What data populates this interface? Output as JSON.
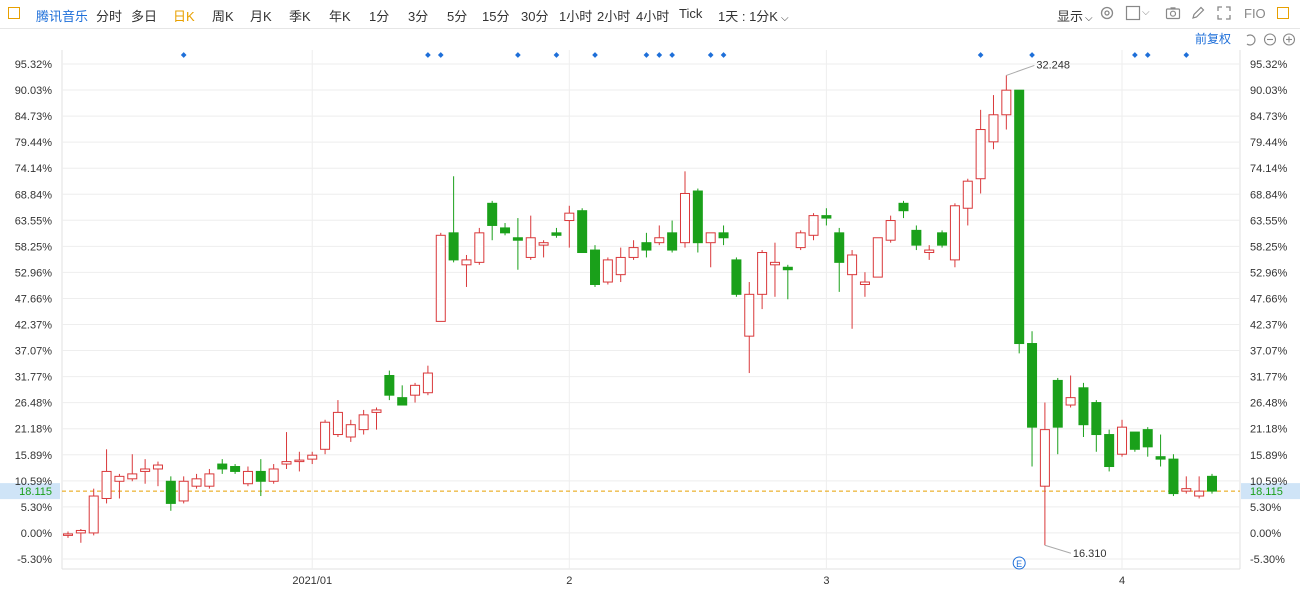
{
  "toolbar": {
    "stock_name": "腾讯音乐",
    "periods": [
      "分时",
      "多日",
      "日K",
      "周K",
      "月K",
      "季K",
      "年K",
      "1分",
      "3分",
      "5分",
      "15分",
      "30分",
      "1小时",
      "2小时",
      "4小时",
      "Tick"
    ],
    "active_period": "日K",
    "aggregation": "1天 : 1分K",
    "display_label": "显示",
    "fio_label": "FIO"
  },
  "adjust_label": "前复权",
  "colors": {
    "up": "#d9383a",
    "down": "#1aa01a",
    "grid": "#eeeeee",
    "axis_text": "#333333",
    "price_line": "#e8a000",
    "price_box": "#cfe4f7",
    "marker": "#1e6fd9"
  },
  "chart_data": {
    "type": "candlestick",
    "y_axis": {
      "unit": "percent",
      "ticks": [
        95.32,
        90.03,
        84.73,
        79.44,
        74.14,
        68.84,
        63.55,
        58.25,
        52.96,
        47.66,
        42.37,
        37.07,
        31.77,
        26.48,
        21.18,
        15.89,
        10.59,
        5.3,
        0.0,
        -5.3
      ]
    },
    "x_axis": {
      "labels": [
        "2021/01",
        "2",
        "3",
        "4"
      ]
    },
    "current_price_label": "18.115",
    "high_label": "32.248",
    "low_label": "16.310",
    "event_marker": "E",
    "candles": [
      {
        "o": -0.5,
        "h": 0.3,
        "l": -1.0,
        "c": -0.2
      },
      {
        "o": 0.0,
        "h": 0.8,
        "l": -2.0,
        "c": 0.5
      },
      {
        "o": 0.0,
        "h": 9.0,
        "l": -0.5,
        "c": 7.5
      },
      {
        "o": 7.0,
        "h": 17.0,
        "l": 6.0,
        "c": 12.5
      },
      {
        "o": 10.5,
        "h": 12.0,
        "l": 7.0,
        "c": 11.5
      },
      {
        "o": 11.0,
        "h": 16.0,
        "l": 10.5,
        "c": 12.0
      },
      {
        "o": 12.5,
        "h": 15.0,
        "l": 10.0,
        "c": 13.0
      },
      {
        "o": 13.0,
        "h": 14.5,
        "l": 9.5,
        "c": 13.8
      },
      {
        "o": 10.5,
        "h": 11.5,
        "l": 4.5,
        "c": 6.0
      },
      {
        "o": 6.5,
        "h": 11.5,
        "l": 6.0,
        "c": 10.5
      },
      {
        "o": 9.5,
        "h": 12.0,
        "l": 9.0,
        "c": 11.0
      },
      {
        "o": 9.5,
        "h": 13.0,
        "l": 9.0,
        "c": 12.0
      },
      {
        "o": 14.0,
        "h": 15.0,
        "l": 12.0,
        "c": 13.0
      },
      {
        "o": 13.5,
        "h": 14.0,
        "l": 12.0,
        "c": 12.5
      },
      {
        "o": 10.0,
        "h": 13.5,
        "l": 9.5,
        "c": 12.5
      },
      {
        "o": 12.5,
        "h": 15.0,
        "l": 7.5,
        "c": 10.5
      },
      {
        "o": 10.5,
        "h": 14.0,
        "l": 10.0,
        "c": 13.0
      },
      {
        "o": 14.0,
        "h": 20.5,
        "l": 13.0,
        "c": 14.5
      },
      {
        "o": 14.5,
        "h": 16.5,
        "l": 12.5,
        "c": 14.8
      },
      {
        "o": 15.0,
        "h": 16.5,
        "l": 14.0,
        "c": 15.8
      },
      {
        "o": 17.0,
        "h": 23.0,
        "l": 16.0,
        "c": 22.5
      },
      {
        "o": 20.0,
        "h": 27.0,
        "l": 19.5,
        "c": 24.5
      },
      {
        "o": 19.5,
        "h": 23.0,
        "l": 18.5,
        "c": 22.0
      },
      {
        "o": 21.0,
        "h": 25.0,
        "l": 20.0,
        "c": 24.0
      },
      {
        "o": 24.5,
        "h": 25.5,
        "l": 21.0,
        "c": 25.0
      },
      {
        "o": 32.0,
        "h": 33.0,
        "l": 27.0,
        "c": 28.0
      },
      {
        "o": 27.5,
        "h": 30.0,
        "l": 26.0,
        "c": 26.0
      },
      {
        "o": 28.0,
        "h": 30.5,
        "l": 26.5,
        "c": 30.0
      },
      {
        "o": 28.5,
        "h": 34.0,
        "l": 28.0,
        "c": 32.5
      },
      {
        "o": 43.0,
        "h": 61.0,
        "l": 43.0,
        "c": 60.5
      },
      {
        "o": 61.0,
        "h": 72.5,
        "l": 55.0,
        "c": 55.5
      },
      {
        "o": 54.5,
        "h": 56.5,
        "l": 50.0,
        "c": 55.5
      },
      {
        "o": 55.0,
        "h": 62.0,
        "l": 54.5,
        "c": 61.0
      },
      {
        "o": 67.0,
        "h": 67.5,
        "l": 59.5,
        "c": 62.5
      },
      {
        "o": 62.0,
        "h": 63.0,
        "l": 60.5,
        "c": 61.0
      },
      {
        "o": 60.0,
        "h": 64.0,
        "l": 53.5,
        "c": 59.5
      },
      {
        "o": 56.0,
        "h": 64.5,
        "l": 55.5,
        "c": 60.0
      },
      {
        "o": 58.5,
        "h": 59.5,
        "l": 56.0,
        "c": 59.0
      },
      {
        "o": 61.0,
        "h": 62.0,
        "l": 60.0,
        "c": 60.5
      },
      {
        "o": 63.5,
        "h": 66.5,
        "l": 58.0,
        "c": 65.0
      },
      {
        "o": 65.5,
        "h": 66.0,
        "l": 57.0,
        "c": 57.0
      },
      {
        "o": 57.5,
        "h": 58.5,
        "l": 50.0,
        "c": 50.5
      },
      {
        "o": 51.0,
        "h": 56.0,
        "l": 50.5,
        "c": 55.5
      },
      {
        "o": 52.5,
        "h": 58.0,
        "l": 51.0,
        "c": 56.0
      },
      {
        "o": 56.0,
        "h": 59.5,
        "l": 55.5,
        "c": 58.0
      },
      {
        "o": 59.0,
        "h": 61.0,
        "l": 56.0,
        "c": 57.5
      },
      {
        "o": 59.0,
        "h": 62.5,
        "l": 58.5,
        "c": 60.0
      },
      {
        "o": 61.0,
        "h": 63.5,
        "l": 57.0,
        "c": 57.5
      },
      {
        "o": 59.0,
        "h": 73.5,
        "l": 58.0,
        "c": 69.0
      },
      {
        "o": 69.5,
        "h": 70.0,
        "l": 57.0,
        "c": 59.0
      },
      {
        "o": 59.0,
        "h": 61.0,
        "l": 54.0,
        "c": 61.0
      },
      {
        "o": 61.0,
        "h": 62.5,
        "l": 58.5,
        "c": 60.0
      },
      {
        "o": 55.5,
        "h": 56.0,
        "l": 48.0,
        "c": 48.5
      },
      {
        "o": 40.0,
        "h": 51.0,
        "l": 32.5,
        "c": 48.5
      },
      {
        "o": 48.5,
        "h": 57.5,
        "l": 45.5,
        "c": 57.0
      },
      {
        "o": 54.5,
        "h": 59.0,
        "l": 48.0,
        "c": 55.0
      },
      {
        "o": 54.0,
        "h": 54.5,
        "l": 47.5,
        "c": 53.5
      },
      {
        "o": 58.0,
        "h": 61.5,
        "l": 57.5,
        "c": 61.0
      },
      {
        "o": 60.5,
        "h": 65.0,
        "l": 59.5,
        "c": 64.5
      },
      {
        "o": 64.5,
        "h": 66.0,
        "l": 62.5,
        "c": 64.0
      },
      {
        "o": 61.0,
        "h": 62.0,
        "l": 49.0,
        "c": 55.0
      },
      {
        "o": 52.5,
        "h": 57.5,
        "l": 41.5,
        "c": 56.5
      },
      {
        "o": 50.5,
        "h": 53.0,
        "l": 48.0,
        "c": 51.0
      },
      {
        "o": 52.0,
        "h": 60.0,
        "l": 52.0,
        "c": 60.0
      },
      {
        "o": 59.5,
        "h": 64.5,
        "l": 59.0,
        "c": 63.5
      },
      {
        "o": 67.0,
        "h": 67.5,
        "l": 64.0,
        "c": 65.5
      },
      {
        "o": 61.5,
        "h": 62.5,
        "l": 57.5,
        "c": 58.5
      },
      {
        "o": 57.0,
        "h": 58.5,
        "l": 55.5,
        "c": 57.5
      },
      {
        "o": 61.0,
        "h": 61.5,
        "l": 58.0,
        "c": 58.5
      },
      {
        "o": 55.5,
        "h": 67.0,
        "l": 54.0,
        "c": 66.5
      },
      {
        "o": 66.0,
        "h": 72.0,
        "l": 62.5,
        "c": 71.5
      },
      {
        "o": 72.0,
        "h": 86.0,
        "l": 69.0,
        "c": 82.0
      },
      {
        "o": 79.5,
        "h": 89.0,
        "l": 78.0,
        "c": 85.0
      },
      {
        "o": 85.0,
        "h": 93.0,
        "l": 82.0,
        "c": 90.0
      },
      {
        "o": 90.0,
        "h": 90.0,
        "l": 36.5,
        "c": 38.5
      },
      {
        "o": 38.5,
        "h": 41.0,
        "l": 13.5,
        "c": 21.5
      },
      {
        "o": 9.5,
        "h": 26.5,
        "l": -2.5,
        "c": 21.0
      },
      {
        "o": 31.0,
        "h": 31.5,
        "l": 16.0,
        "c": 21.5
      },
      {
        "o": 26.0,
        "h": 32.0,
        "l": 25.5,
        "c": 27.5
      },
      {
        "o": 29.5,
        "h": 30.5,
        "l": 19.5,
        "c": 22.0
      },
      {
        "o": 26.5,
        "h": 27.0,
        "l": 16.5,
        "c": 20.0
      },
      {
        "o": 20.0,
        "h": 21.0,
        "l": 12.5,
        "c": 13.5
      },
      {
        "o": 16.0,
        "h": 23.0,
        "l": 15.5,
        "c": 21.5
      },
      {
        "o": 20.5,
        "h": 20.5,
        "l": 16.5,
        "c": 17.0
      },
      {
        "o": 21.0,
        "h": 21.5,
        "l": 15.5,
        "c": 17.5
      },
      {
        "o": 15.5,
        "h": 20.0,
        "l": 13.5,
        "c": 15.0
      },
      {
        "o": 15.0,
        "h": 16.0,
        "l": 7.5,
        "c": 8.0
      },
      {
        "o": 8.5,
        "h": 11.5,
        "l": 8.0,
        "c": 9.0
      },
      {
        "o": 7.5,
        "h": 11.5,
        "l": 7.0,
        "c": 8.5
      },
      {
        "o": 11.5,
        "h": 12.0,
        "l": 8.0,
        "c": 8.5
      }
    ],
    "event_dot_positions": [
      9,
      28,
      29,
      35,
      38,
      41,
      45,
      46,
      47,
      50,
      51,
      71,
      75,
      83,
      84,
      87
    ]
  }
}
